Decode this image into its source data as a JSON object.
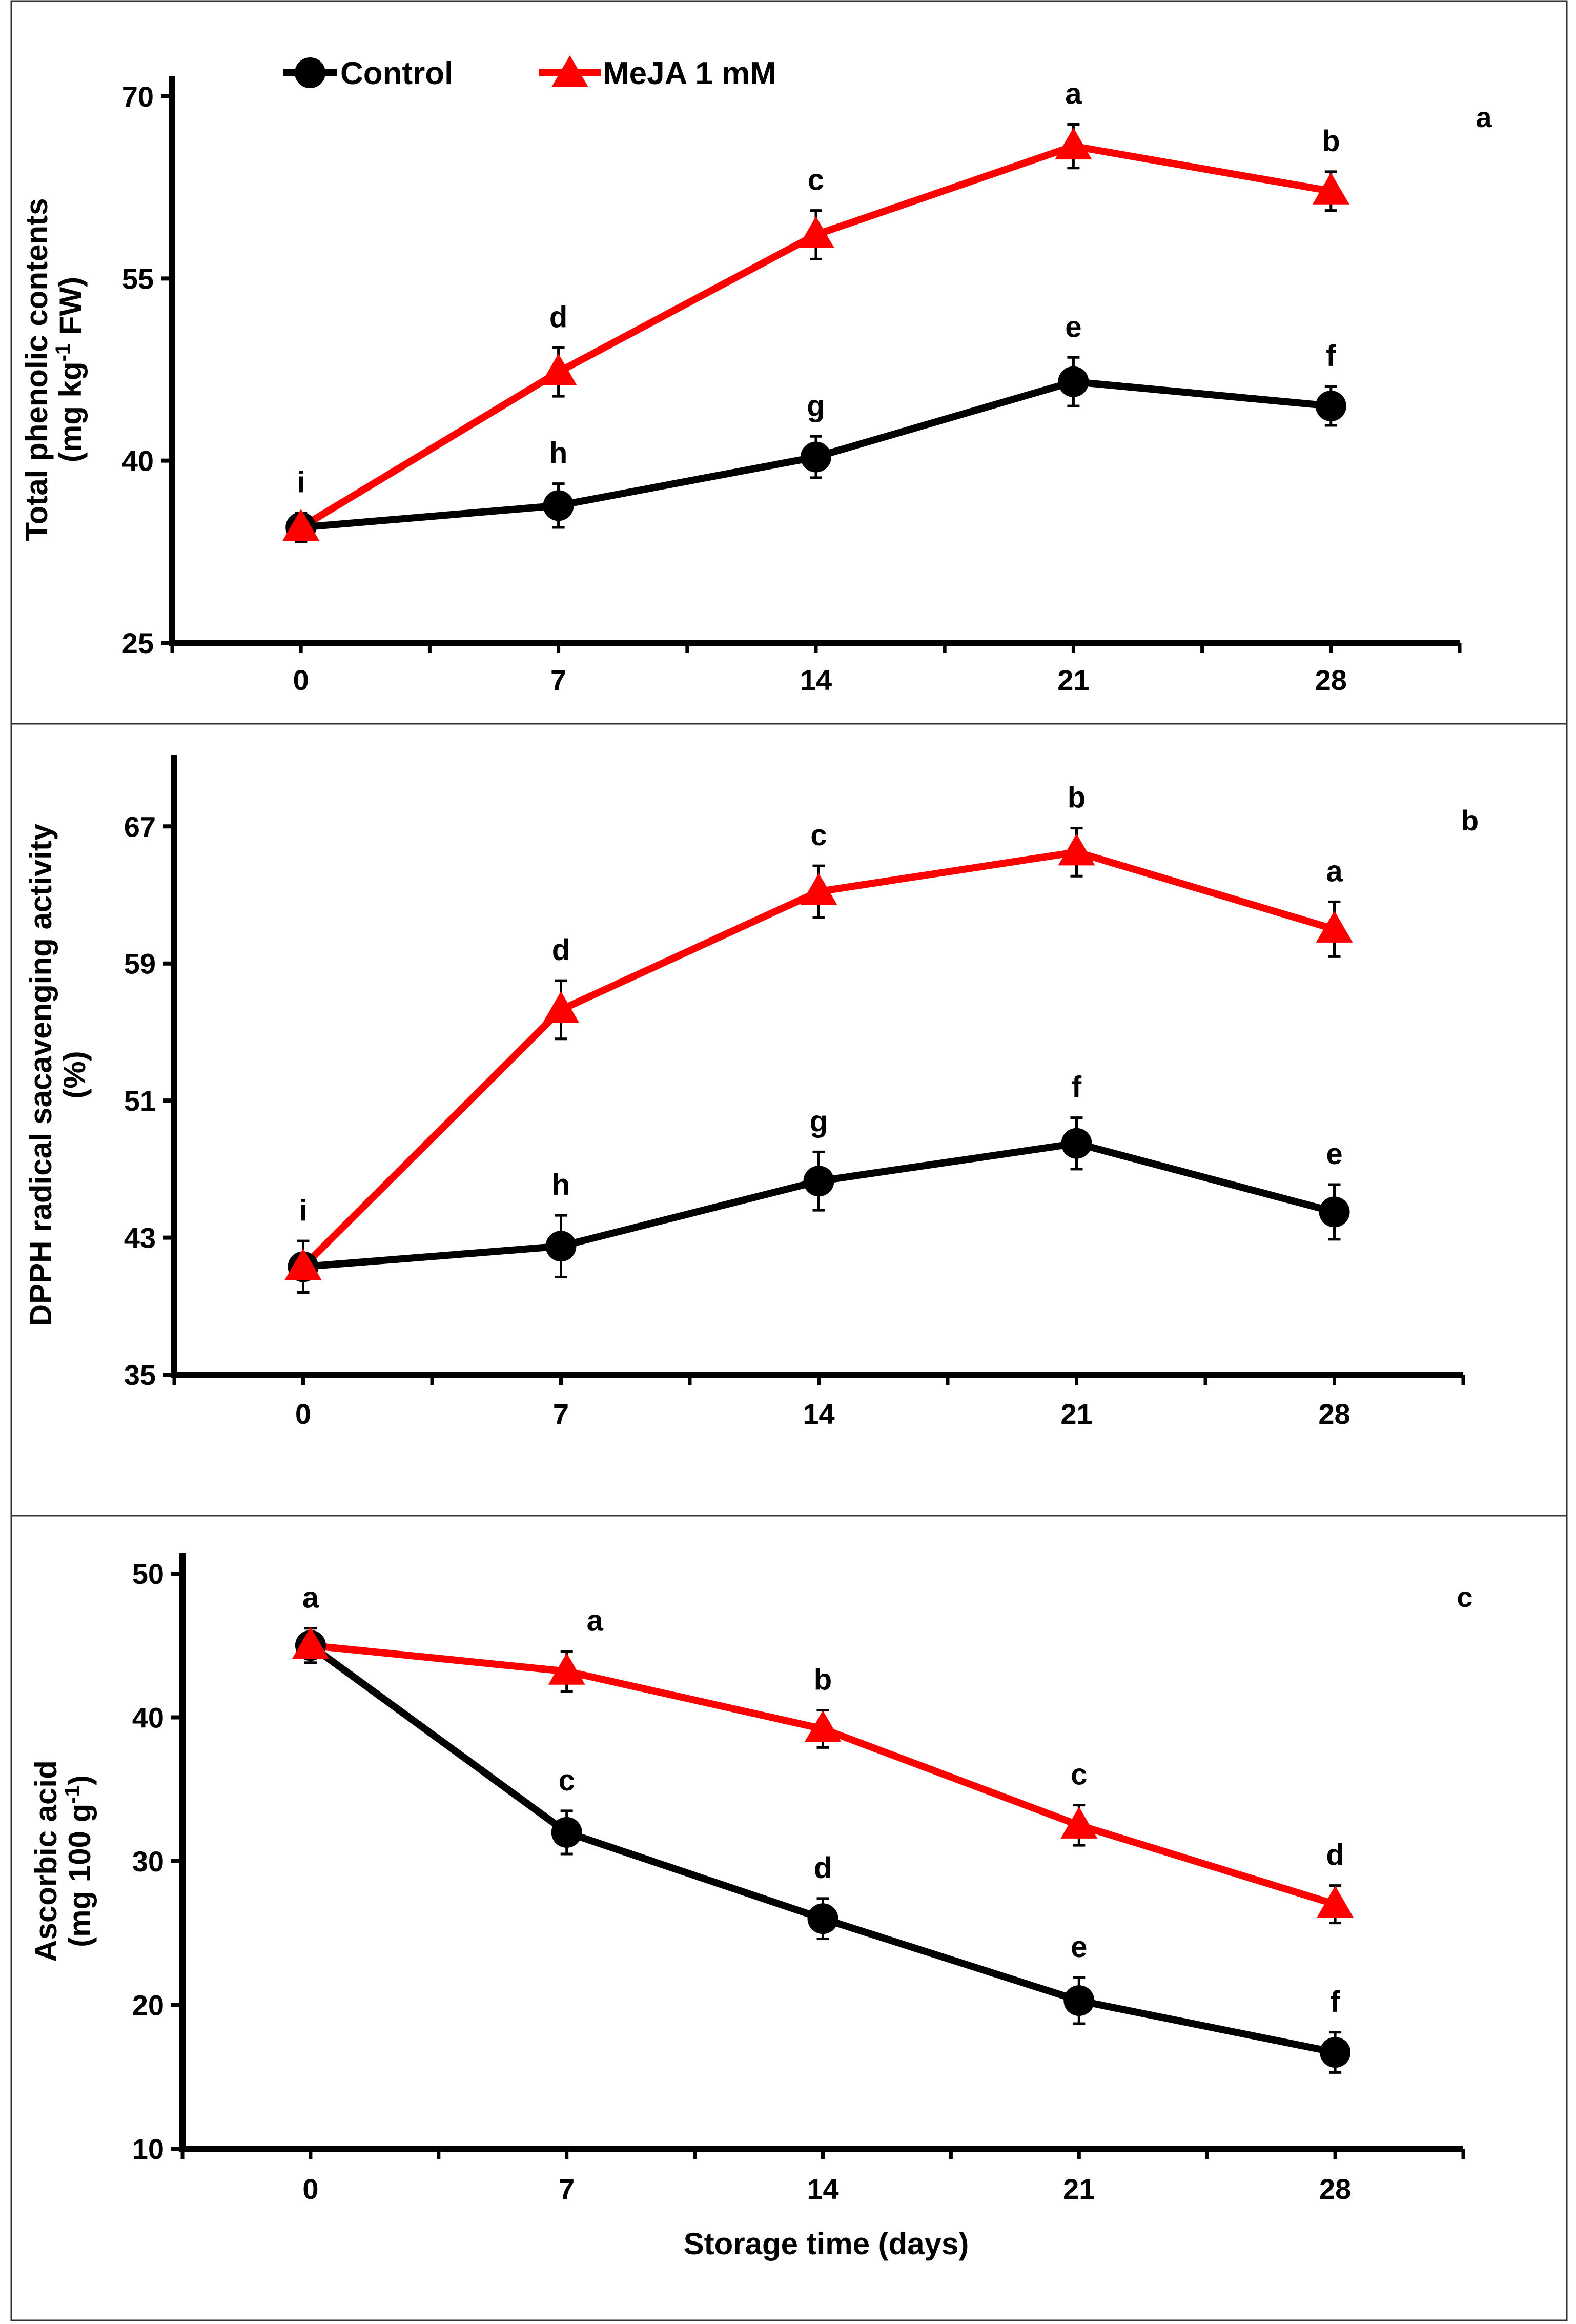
{
  "legend": {
    "control_label": "Control",
    "meja_label": "MeJA 1 mM",
    "control_color": "#000000",
    "meja_color": "#ff0000",
    "control_marker": "circle-icon",
    "meja_marker": "triangle-icon"
  },
  "xlabel": "Storage time (days)",
  "chart_data": [
    {
      "type": "line",
      "panel": "a",
      "x": [
        0,
        7,
        14,
        21,
        28
      ],
      "xlim": [
        -3.5,
        31.5
      ],
      "ylim": [
        25,
        70
      ],
      "yticks": [
        25,
        40,
        55,
        70
      ],
      "ylabel_lines": [
        "Total phenolic contents",
        "(mg kg",
        "-1",
        " FW)"
      ],
      "series": [
        {
          "name": "Control",
          "values": [
            34.5,
            36.3,
            40.3,
            46.5,
            44.5
          ],
          "errors": [
            1.2,
            1.8,
            1.7,
            2.0,
            1.6
          ],
          "letters": [
            "",
            "h",
            "g",
            "e",
            "f"
          ]
        },
        {
          "name": "MeJA 1 mM",
          "values": [
            34.5,
            47.3,
            58.6,
            65.9,
            62.2
          ],
          "errors": [
            1.2,
            2.0,
            2.0,
            1.8,
            1.6
          ],
          "letters": [
            "i",
            "d",
            "c",
            "a",
            "b"
          ]
        }
      ]
    },
    {
      "type": "line",
      "panel": "b",
      "x": [
        0,
        7,
        14,
        21,
        28
      ],
      "xlim": [
        -3.5,
        31.5
      ],
      "ylim": [
        35,
        70
      ],
      "yticks": [
        35,
        43,
        51,
        59,
        67
      ],
      "ylabel_lines": [
        "DPPH radical sacavenging activity",
        "(%)"
      ],
      "series": [
        {
          "name": "Control",
          "values": [
            41.3,
            42.5,
            46.3,
            48.5,
            44.5
          ],
          "errors": [
            1.5,
            1.8,
            1.7,
            1.5,
            1.6
          ],
          "letters": [
            "",
            "h",
            "g",
            "f",
            "e"
          ]
        },
        {
          "name": "MeJA 1 mM",
          "values": [
            41.3,
            56.3,
            63.2,
            65.5,
            61.0
          ],
          "errors": [
            1.5,
            1.7,
            1.5,
            1.4,
            1.6
          ],
          "letters": [
            "i",
            "d",
            "c",
            "b",
            "a"
          ]
        }
      ]
    },
    {
      "type": "line",
      "panel": "c",
      "x": [
        0,
        7,
        14,
        21,
        28
      ],
      "xlim": [
        -3.5,
        31.5
      ],
      "ylim": [
        10,
        50
      ],
      "yticks": [
        10,
        20,
        30,
        40,
        50
      ],
      "ylabel_lines": [
        "Ascorbic acid",
        "(mg 100 g",
        "-1",
        ")"
      ],
      "series": [
        {
          "name": "Control",
          "values": [
            45.0,
            32.0,
            26.0,
            20.3,
            16.7
          ],
          "errors": [
            1.2,
            1.5,
            1.4,
            1.6,
            1.4
          ],
          "letters": [
            "",
            "c",
            "d",
            "e",
            "f"
          ]
        },
        {
          "name": "MeJA 1 mM",
          "values": [
            45.0,
            43.2,
            39.2,
            32.5,
            27.0
          ],
          "errors": [
            1.2,
            1.4,
            1.3,
            1.4,
            1.3
          ],
          "letters": [
            "a",
            "a",
            "b",
            "c",
            "d"
          ]
        }
      ]
    }
  ]
}
